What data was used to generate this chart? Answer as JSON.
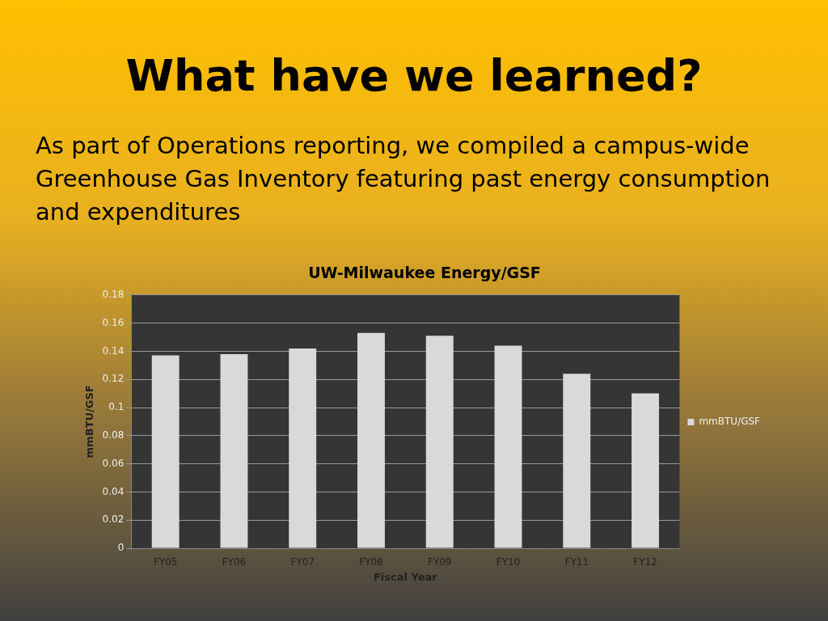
{
  "chart_data": {
    "type": "bar",
    "title": "What have we learned?",
    "subtitle": "As part of Operations reporting, we compiled a campus-wide Greenhouse Gas Inventory featuring past energy consumption and expenditures",
    "annotations": [
      "UW-Milwaukee Energy/GSF"
    ],
    "xlabel": "Fiscal Year",
    "ylabel": "mmBTU/GSF",
    "categories": [
      "FY05",
      "FY06",
      "FY07",
      "FY08",
      "FY09",
      "FY10",
      "FY11",
      "FY12"
    ],
    "series": [
      {
        "name": "mmBTU/GSF",
        "color": "#d9d9d9",
        "values": [
          0.137,
          0.138,
          0.142,
          0.153,
          0.151,
          0.144,
          0.124,
          0.11
        ]
      }
    ],
    "ylim": [
      0,
      0.18
    ],
    "yticks": [
      0,
      0.02,
      0.04,
      0.06,
      0.08,
      0.1,
      0.12,
      0.14,
      0.16,
      0.18
    ],
    "grid": "y",
    "legend": "right"
  }
}
